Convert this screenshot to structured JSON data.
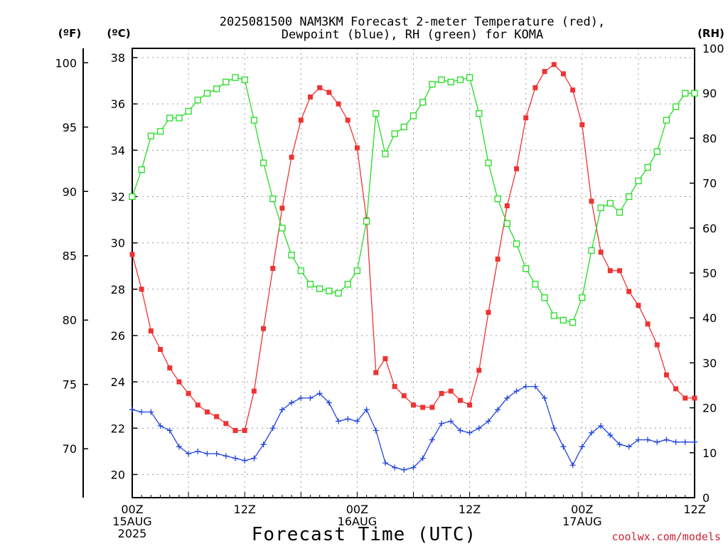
{
  "chart_data": {
    "type": "line",
    "title_line1": "2025081500 NAM3KM Forecast 2-meter Temperature (red),",
    "title_line2": "Dewpoint (blue), RH (green) for KOMA",
    "xlabel": "Forecast Time (UTC)",
    "credit": "coolwx.com/models",
    "unit_labels": {
      "fahrenheit": "(ºF)",
      "celsius": "(ºC)",
      "rh": "(RH)"
    },
    "x_range_hours": [
      0,
      60
    ],
    "x_ticks": [
      {
        "hour": 0,
        "lines": [
          "00Z",
          "15AUG",
          "2025"
        ]
      },
      {
        "hour": 12,
        "lines": [
          "12Z"
        ]
      },
      {
        "hour": 24,
        "lines": [
          "00Z",
          "16AUG"
        ]
      },
      {
        "hour": 36,
        "lines": [
          "12Z"
        ]
      },
      {
        "hour": 48,
        "lines": [
          "00Z",
          "17AUG"
        ]
      },
      {
        "hour": 60,
        "lines": [
          "12Z"
        ]
      }
    ],
    "celsius_axis": {
      "min": 19.0,
      "max": 38.4,
      "ticks": [
        "20",
        "22",
        "24",
        "26",
        "28",
        "30",
        "32",
        "34",
        "36",
        "38"
      ]
    },
    "fahrenheit_ticks": [
      "70",
      "75",
      "80",
      "85",
      "90",
      "95",
      "100"
    ],
    "rh_axis": {
      "min": 0,
      "max": 100,
      "ticks": [
        "0",
        "10",
        "20",
        "30",
        "40",
        "50",
        "60",
        "70",
        "80",
        "90",
        "100"
      ]
    },
    "grid": true,
    "series": [
      {
        "name": "Temperature",
        "axis": "celsius",
        "color": "#ee3333",
        "marker": "filled-square",
        "x": [
          0,
          1,
          2,
          3,
          4,
          5,
          6,
          7,
          8,
          9,
          10,
          11,
          12,
          13,
          14,
          15,
          16,
          17,
          18,
          19,
          20,
          21,
          22,
          23,
          24,
          25,
          26,
          27,
          28,
          29,
          30,
          31,
          32,
          33,
          34,
          35,
          36,
          37,
          38,
          39,
          40,
          41,
          42,
          43,
          44,
          45,
          46,
          47,
          48,
          49,
          50,
          51,
          52,
          53,
          54,
          55,
          56,
          57,
          58,
          59,
          60
        ],
        "values": [
          29.5,
          28.0,
          26.2,
          25.4,
          24.6,
          24.0,
          23.5,
          23.0,
          22.7,
          22.5,
          22.2,
          21.9,
          21.9,
          23.6,
          26.3,
          28.9,
          31.5,
          33.7,
          35.3,
          36.3,
          36.7,
          36.5,
          36.0,
          35.3,
          34.1,
          31.0,
          24.4,
          25.0,
          23.8,
          23.4,
          23.0,
          22.9,
          22.9,
          23.5,
          23.6,
          23.2,
          23.0,
          24.5,
          27.0,
          29.3,
          31.6,
          33.2,
          35.4,
          36.7,
          37.4,
          37.7,
          37.3,
          36.6,
          35.1,
          31.8,
          29.6,
          28.8,
          28.8,
          27.9,
          27.3,
          26.5,
          25.6,
          24.3,
          23.7,
          23.3,
          23.3
        ]
      },
      {
        "name": "Dewpoint",
        "axis": "celsius",
        "color": "#2244dd",
        "marker": "plus",
        "x": [
          0,
          1,
          2,
          3,
          4,
          5,
          6,
          7,
          8,
          9,
          10,
          11,
          12,
          13,
          14,
          15,
          16,
          17,
          18,
          19,
          20,
          21,
          22,
          23,
          24,
          25,
          26,
          27,
          28,
          29,
          30,
          31,
          32,
          33,
          34,
          35,
          36,
          37,
          38,
          39,
          40,
          41,
          42,
          43,
          44,
          45,
          46,
          47,
          48,
          49,
          50,
          51,
          52,
          53,
          54,
          55,
          56,
          57,
          58,
          59,
          60
        ],
        "values": [
          22.8,
          22.7,
          22.7,
          22.1,
          21.9,
          21.2,
          20.9,
          21.0,
          20.9,
          20.9,
          20.8,
          20.7,
          20.6,
          20.7,
          21.3,
          22.0,
          22.8,
          23.1,
          23.3,
          23.3,
          23.5,
          23.1,
          22.3,
          22.4,
          22.3,
          22.8,
          21.9,
          20.5,
          20.3,
          20.2,
          20.3,
          20.7,
          21.5,
          22.2,
          22.3,
          21.9,
          21.8,
          22.0,
          22.3,
          22.8,
          23.3,
          23.6,
          23.8,
          23.8,
          23.3,
          22.0,
          21.2,
          20.4,
          21.2,
          21.8,
          22.1,
          21.7,
          21.3,
          21.2,
          21.5,
          21.5,
          21.4,
          21.5,
          21.4,
          21.4,
          21.4
        ]
      },
      {
        "name": "RH",
        "axis": "rh",
        "color": "#22dd22",
        "marker": "open-square",
        "x": [
          0,
          1,
          2,
          3,
          4,
          5,
          6,
          7,
          8,
          9,
          10,
          11,
          12,
          13,
          14,
          15,
          16,
          17,
          18,
          19,
          20,
          21,
          22,
          23,
          24,
          25,
          26,
          27,
          28,
          29,
          30,
          31,
          32,
          33,
          34,
          35,
          36,
          37,
          38,
          39,
          40,
          41,
          42,
          43,
          44,
          45,
          46,
          47,
          48,
          49,
          50,
          51,
          52,
          53,
          54,
          55,
          56,
          57,
          58,
          59,
          60
        ],
        "values": [
          67,
          73,
          80.5,
          81.5,
          84.5,
          84.5,
          86,
          88.5,
          90,
          91,
          92.5,
          93.5,
          93,
          84,
          74.5,
          66.5,
          60,
          54,
          50.5,
          47.5,
          46.5,
          46,
          45.5,
          47.5,
          50.5,
          61.5,
          85.5,
          76.5,
          81,
          82.5,
          85,
          88,
          92,
          93,
          92.5,
          93,
          93.5,
          85.5,
          74.5,
          66.5,
          61,
          56.5,
          51,
          47.5,
          44.5,
          40.5,
          39.5,
          39,
          44.5,
          55,
          64.5,
          65.5,
          63.5,
          67,
          70.5,
          73.5,
          77,
          84,
          87,
          90,
          90
        ]
      }
    ]
  }
}
